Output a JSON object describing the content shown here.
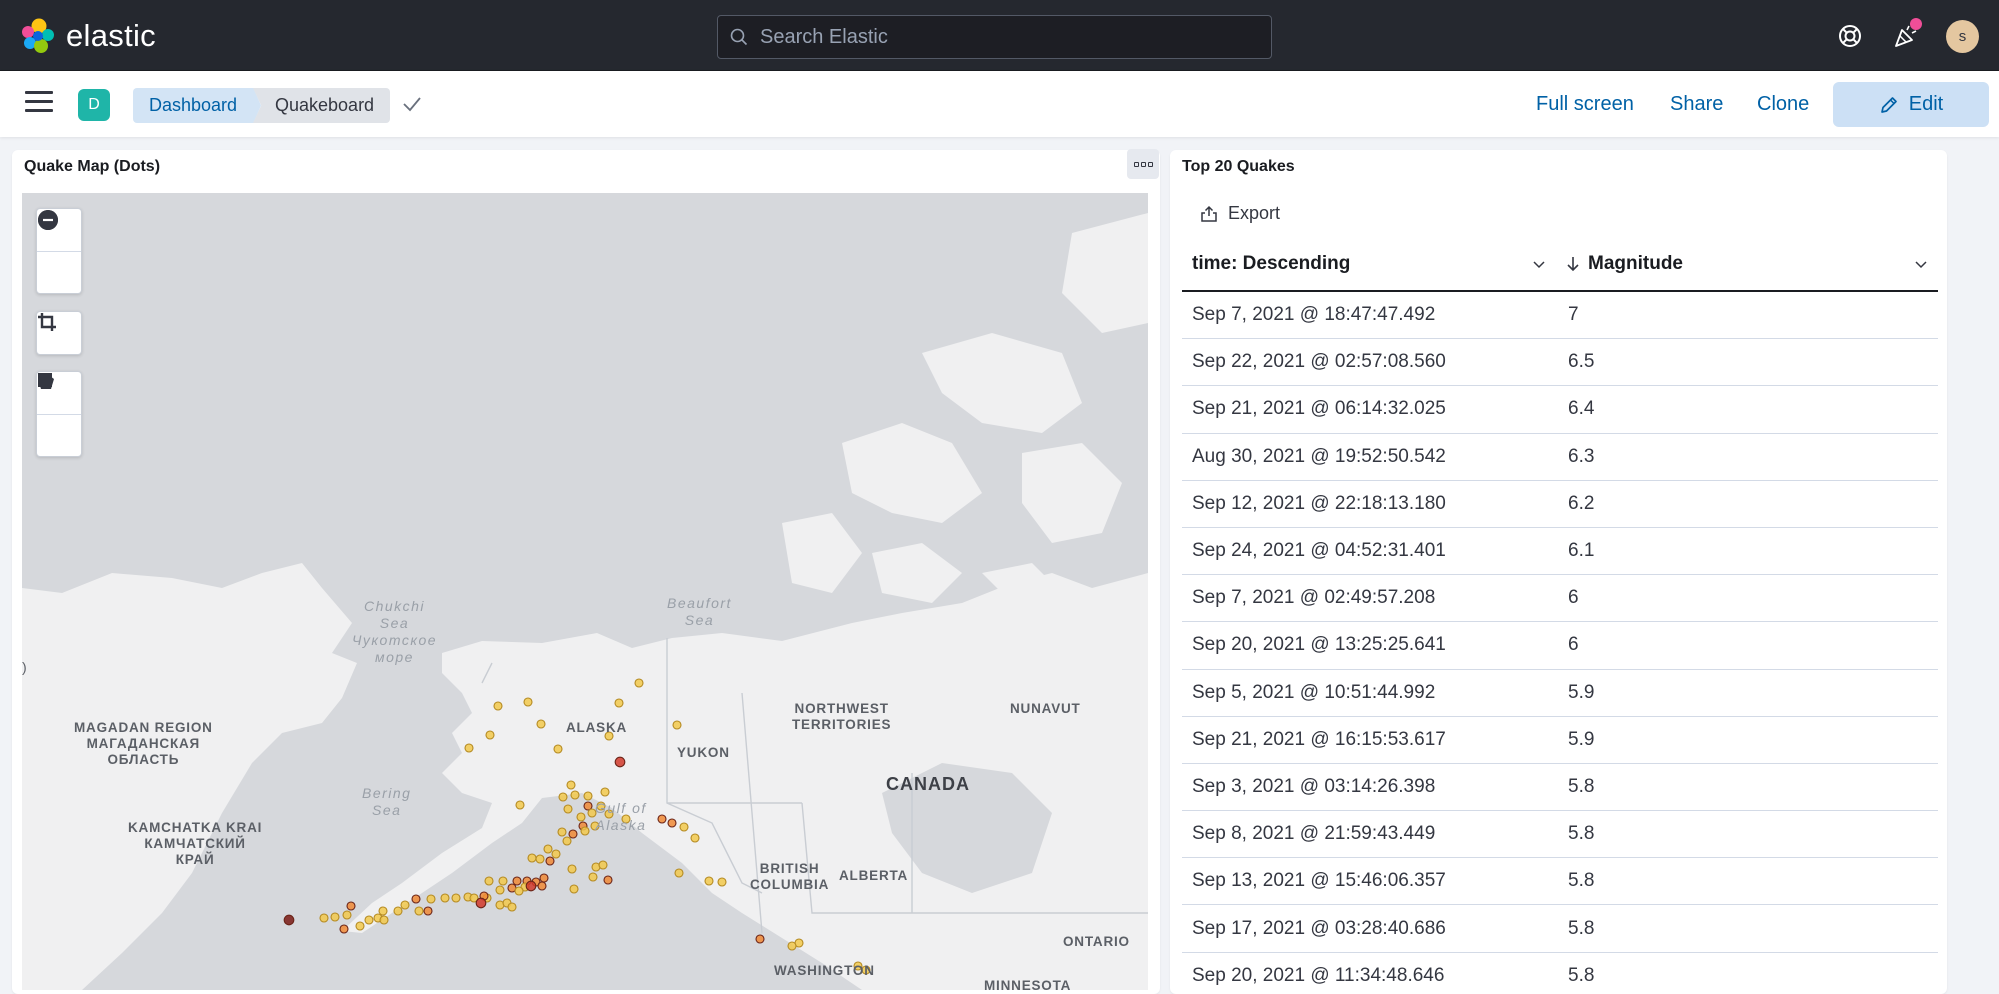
{
  "header": {
    "logo_text": "elastic",
    "search_placeholder": "Search Elastic",
    "avatar_initial": "s",
    "help_icon": "help-lifebuoy-icon",
    "news_icon": "newsfeed-cheer-icon",
    "notification_color": "#f04e98"
  },
  "toolbar": {
    "space_initial": "D",
    "breadcrumbs": [
      "Dashboard",
      "Quakeboard"
    ],
    "full_screen_label": "Full screen",
    "share_label": "Share",
    "clone_label": "Clone",
    "edit_label": "Edit"
  },
  "map_panel": {
    "title": "Quake Map (Dots)",
    "labels": {
      "chukchi": "Chukchi\nSea\nЧукотское\nморе",
      "beaufort": "Beaufort\nSea",
      "magadan": "MAGADAN REGION\nМАГАДАНСКАЯ\nОБЛАСТЬ",
      "kamchatka": "KAMCHATKA KRAI\nКАМЧАТСКИЙ\nКРАЙ",
      "bering": "Bering\nSea",
      "gulf": "Gulf of\nAlaska",
      "alaska": "ALASKA",
      "yukon": "YUKON",
      "nwt": "NORTHWEST\nTERRITORIES",
      "nunavut": "NUNAVUT",
      "canada": "CANADA",
      "bc": "BRITISH\nCOLUMBIA",
      "alberta": "ALBERTA",
      "ontario": "ONTARIO",
      "washington": "WASHINGTON",
      "minnesota": "MINNESOTA"
    },
    "colors": {
      "land": "#f0f0f1",
      "water": "#d6d8dc",
      "dot_low": "#f2c94c",
      "dot_mid": "#f08a36",
      "dot_high": "#d13a2b"
    }
  },
  "table_panel": {
    "title": "Top 20 Quakes",
    "export_label": "Export",
    "columns": [
      "time: Descending",
      "Magnitude"
    ],
    "rows": [
      [
        "Sep 7, 2021 @ 18:47:47.492",
        "7"
      ],
      [
        "Sep 22, 2021 @ 02:57:08.560",
        "6.5"
      ],
      [
        "Sep 21, 2021 @ 06:14:32.025",
        "6.4"
      ],
      [
        "Aug 30, 2021 @ 19:52:50.542",
        "6.3"
      ],
      [
        "Sep 12, 2021 @ 22:18:13.180",
        "6.2"
      ],
      [
        "Sep 24, 2021 @ 04:52:31.401",
        "6.1"
      ],
      [
        "Sep 7, 2021 @ 02:49:57.208",
        "6"
      ],
      [
        "Sep 20, 2021 @ 13:25:25.641",
        "6"
      ],
      [
        "Sep 5, 2021 @ 10:51:44.992",
        "5.9"
      ],
      [
        "Sep 21, 2021 @ 16:15:53.617",
        "5.9"
      ],
      [
        "Sep 3, 2021 @ 03:14:26.398",
        "5.8"
      ],
      [
        "Sep 8, 2021 @ 21:59:43.449",
        "5.8"
      ],
      [
        "Sep 13, 2021 @ 15:46:06.357",
        "5.8"
      ],
      [
        "Sep 17, 2021 @ 03:28:40.686",
        "5.8"
      ],
      [
        "Sep 20, 2021 @ 11:34:48.646",
        "5.8"
      ]
    ]
  }
}
